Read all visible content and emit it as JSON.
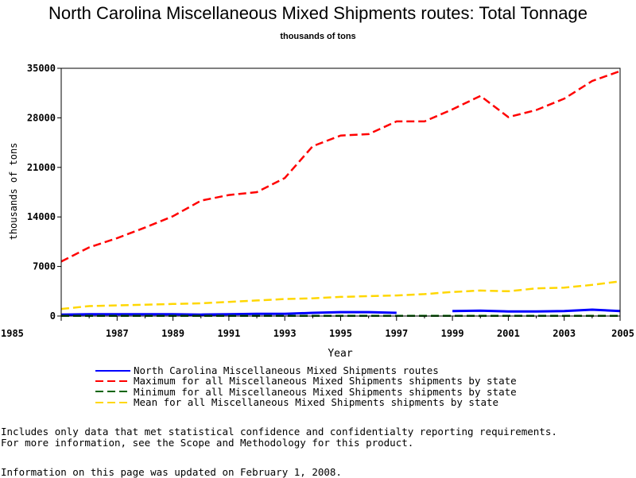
{
  "title": "North Carolina Miscellaneous Mixed Shipments routes: Total Tonnage",
  "subtitle": "thousands of tons",
  "notes": {
    "line1": "Includes only data that met statistical confidence and confidentialty reporting requirements.",
    "line2": "For more information, see the Scope and Methodology for this product.",
    "updated": "Information on this page was updated on February 1, 2008."
  },
  "chart_data": {
    "type": "line",
    "xlabel": "Year",
    "ylabel": "thousands of tons",
    "xlim": [
      1985,
      2005
    ],
    "ylim": [
      0,
      35000
    ],
    "xticks": [
      "1985",
      "1987",
      "1989",
      "1991",
      "1993",
      "1995",
      "1997",
      "1999",
      "2001",
      "2003",
      "2005"
    ],
    "yticks": [
      "0",
      "7000",
      "14000",
      "21000",
      "28000",
      "35000"
    ],
    "x": [
      1985,
      1986,
      1987,
      1988,
      1989,
      1990,
      1991,
      1992,
      1993,
      1994,
      1995,
      1996,
      1997,
      1998,
      1999,
      2000,
      2001,
      2002,
      2003,
      2004,
      2005
    ],
    "series": [
      {
        "name": "North Carolina Miscellaneous Mixed Shipments routes",
        "color": "#0000ff",
        "style": "solid",
        "values": [
          200,
          250,
          250,
          250,
          250,
          200,
          250,
          300,
          300,
          450,
          550,
          550,
          450,
          null,
          700,
          750,
          650,
          650,
          700,
          900,
          700
        ]
      },
      {
        "name": "Maximum for all Miscellaneous Mixed Shipments shipments by state",
        "color": "#ff0000",
        "style": "dashed",
        "values": [
          7700,
          9700,
          11000,
          12500,
          14100,
          16300,
          17100,
          17500,
          19500,
          24000,
          25500,
          25700,
          27500,
          27500,
          29200,
          31100,
          28100,
          29100,
          30700,
          33200,
          34600
        ]
      },
      {
        "name": "Minimum for all Miscellaneous Mixed Shipments shipments by state",
        "color": "#006400",
        "style": "dashed",
        "values": [
          20,
          20,
          20,
          20,
          20,
          20,
          20,
          20,
          20,
          20,
          20,
          20,
          20,
          20,
          20,
          20,
          20,
          20,
          20,
          20,
          20
        ]
      },
      {
        "name": "Mean for all Miscellaneous Mixed Shipments shipments by state",
        "color": "#ffd700",
        "style": "dashed",
        "values": [
          1000,
          1400,
          1500,
          1600,
          1700,
          1800,
          2000,
          2200,
          2400,
          2500,
          2700,
          2800,
          2900,
          3100,
          3400,
          3600,
          3500,
          3900,
          4000,
          4400,
          4900
        ]
      }
    ]
  }
}
